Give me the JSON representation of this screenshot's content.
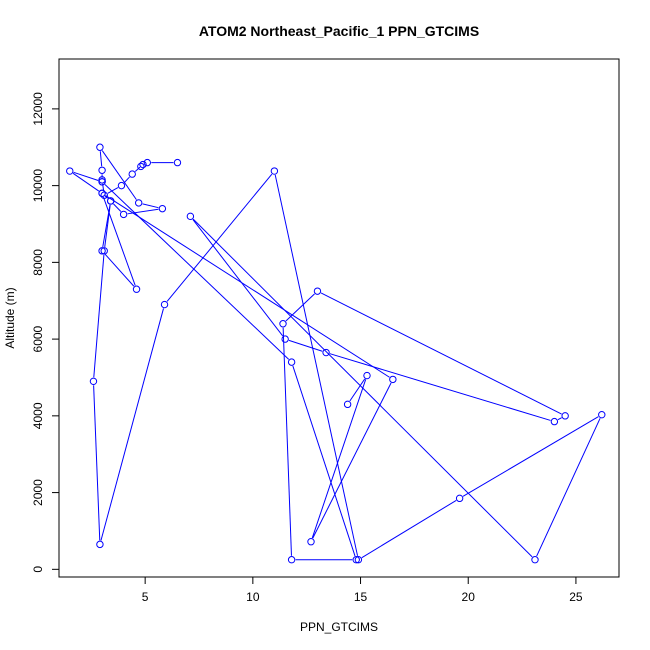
{
  "chart_data": {
    "type": "line",
    "title": "ATOM2 Northeast_Pacific_1 PPN_GTCIMS",
    "xlabel": "PPN_GTCIMS",
    "ylabel": "Altitude (m)",
    "xlim": [
      1.0,
      27.0
    ],
    "ylim": [
      -200,
      13300
    ],
    "xticks": [
      5,
      10,
      15,
      20,
      25
    ],
    "yticks": [
      0,
      2000,
      4000,
      6000,
      8000,
      10000,
      12000
    ],
    "xtick_labels": [
      "5",
      "10",
      "15",
      "20",
      "25"
    ],
    "ytick_labels": [
      "0",
      "2000",
      "4000",
      "6000",
      "8000",
      "10000",
      "12000"
    ],
    "grid": false,
    "series": [
      {
        "color": "#0000ff",
        "marker": "open-circle",
        "x": [
          6.5,
          5.1,
          4.8,
          4.9,
          4.4,
          3.9,
          3.1,
          3.0,
          3.0,
          1.5,
          3.0,
          4.6,
          3.0,
          3.4,
          4.0,
          5.8,
          4.7,
          2.9,
          3.0,
          3.0,
          11.8,
          14.8,
          11.8,
          11.4,
          13.0,
          24.5,
          24.0,
          13.4,
          11.5,
          7.1,
          23.1,
          26.2,
          19.6,
          14.9,
          11.0,
          5.9,
          2.9,
          2.6,
          3.1,
          3.4,
          3.0,
          16.5,
          12.7,
          15.3,
          14.4
        ],
        "y": [
          10600,
          10600,
          10500,
          10550,
          10300,
          10000,
          9750,
          10150,
          10100,
          10380,
          9800,
          7300,
          8300,
          9600,
          9250,
          9400,
          9550,
          11000,
          10400,
          10100,
          5400,
          250,
          250,
          6400,
          7250,
          4000,
          3850,
          5650,
          6000,
          9200,
          250,
          4030,
          1850,
          250,
          10380,
          6900,
          650,
          4900,
          8300,
          9600,
          9800,
          4950,
          720,
          5050,
          4300
        ]
      }
    ]
  }
}
